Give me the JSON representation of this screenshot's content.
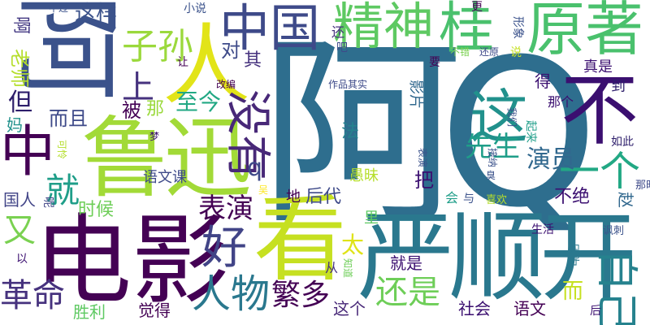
{
  "words": [
    {
      "id": "aq",
      "text": "阿Q",
      "color": "#2e6e8e"
    },
    {
      "id": "yanshunkai",
      "text": "严顺开",
      "color": "#2a788e"
    },
    {
      "id": "dianying",
      "text": "电影",
      "color": "#440154"
    },
    {
      "id": "luxun",
      "text": "鲁迅",
      "color": "#a2da37"
    },
    {
      "id": "kan",
      "text": "看",
      "color": "#c6e021"
    },
    {
      "id": "ren",
      "text": "人",
      "color": "#e2e418"
    },
    {
      "id": "a",
      "text": "阿",
      "color": "#3b528b"
    },
    {
      "id": "zhongguo",
      "text": "中国",
      "color": "#3e4a89"
    },
    {
      "id": "jingshen",
      "text": "精神",
      "color": "#5ec962"
    },
    {
      "id": "gui",
      "text": "桂",
      "color": "#4ac16d"
    },
    {
      "id": "yuanzhu",
      "text": "原著",
      "color": "#4ac16d"
    },
    {
      "id": "bu",
      "text": "不",
      "color": "#3b0f70"
    },
    {
      "id": "zhe",
      "text": "这",
      "color": "#21918c"
    },
    {
      "id": "zhong",
      "text": "中",
      "color": "#440154"
    },
    {
      "id": "meiyou",
      "text": "没有",
      "color": "#482878"
    },
    {
      "id": "hao",
      "text": "好",
      "color": "#414487"
    },
    {
      "id": "renwu",
      "text": "人物",
      "color": "#2a788e"
    },
    {
      "id": "yige",
      "text": "一个",
      "color": "#22a884"
    },
    {
      "id": "zisun",
      "text": "子孙",
      "color": "#9bd93c"
    },
    {
      "id": "shang",
      "text": "上",
      "color": "#46327e"
    },
    {
      "id": "jiu",
      "text": "就",
      "color": "#1f9e89"
    },
    {
      "id": "you",
      "text": "又",
      "color": "#7ad151"
    },
    {
      "id": "geming",
      "text": "革命",
      "color": "#46327e"
    },
    {
      "id": "fanduo",
      "text": "繁多",
      "color": "#440154"
    },
    {
      "id": "haishi",
      "text": "还是",
      "color": "#6ece58"
    },
    {
      "id": "ziji",
      "text": "自己",
      "color": "#26828e"
    },
    {
      "id": "xiansheng",
      "text": "先生",
      "color": "#1f9e89"
    },
    {
      "id": "yanyuan",
      "text": "演员",
      "color": "#31688e"
    },
    {
      "id": "biaoyan",
      "text": "表演",
      "color": "#440154"
    },
    {
      "id": "zhejin",
      "text": "至今",
      "color": "#22a884"
    },
    {
      "id": "zheyang",
      "text": "这样",
      "color": "#3b528b"
    },
    {
      "id": "a2",
      "text": "啊",
      "color": "#443983"
    },
    {
      "id": "laoshi",
      "text": "老师",
      "color": "#b5de2b"
    },
    {
      "id": "dan",
      "text": "但",
      "color": "#2d1e6b"
    },
    {
      "id": "erqie",
      "text": "而且",
      "color": "#3e4a89"
    },
    {
      "id": "ma",
      "text": "妈",
      "color": "#21918c"
    },
    {
      "id": "bei",
      "text": "被",
      "color": "#440154"
    },
    {
      "id": "na",
      "text": "那",
      "color": "#9bd93c"
    },
    {
      "id": "dui",
      "text": "对",
      "color": "#3e4a89"
    },
    {
      "id": "qi",
      "text": "其",
      "color": "#46327e"
    },
    {
      "id": "qx",
      "text": "q",
      "color": "#3e4a89"
    },
    {
      "id": "fa",
      "text": "法",
      "color": "#26828e"
    },
    {
      "id": "yuwenke",
      "text": "语文课",
      "color": "#3e4a89"
    },
    {
      "id": "shihou",
      "text": "时候",
      "color": "#6ece58"
    },
    {
      "id": "guoren",
      "text": "国人",
      "color": "#414487"
    },
    {
      "id": "shengli",
      "text": "胜利",
      "color": "#5ec962"
    },
    {
      "id": "juede",
      "text": "觉得",
      "color": "#440154"
    },
    {
      "id": "jiushi",
      "text": "就是",
      "color": "#3b0f70"
    },
    {
      "id": "zhege",
      "text": "这个",
      "color": "#482878"
    },
    {
      "id": "shehui",
      "text": "社会",
      "color": "#3b0f70"
    },
    {
      "id": "yuwen",
      "text": "语文",
      "color": "#440154"
    },
    {
      "id": "er",
      "text": "而",
      "color": "#c6e021"
    },
    {
      "id": "houdai",
      "text": "后代",
      "color": "#3e4a89"
    },
    {
      "id": "di",
      "text": "地",
      "color": "#440154"
    },
    {
      "id": "bujue",
      "text": "不绝",
      "color": "#3b0f70"
    },
    {
      "id": "yumei",
      "text": "愚昧",
      "color": "#b5de2b"
    },
    {
      "id": "ba",
      "text": "把",
      "color": "#3b0f70"
    },
    {
      "id": "tai",
      "text": "太",
      "color": "#dfe318"
    },
    {
      "id": "li",
      "text": "里",
      "color": "#5ec962"
    },
    {
      "id": "hui",
      "text": "会",
      "color": "#1f9e89"
    },
    {
      "id": "yu",
      "text": "与",
      "color": "#3b528b"
    },
    {
      "id": "xihuan",
      "text": "喜欢",
      "color": "#b5de2b"
    },
    {
      "id": "congle",
      "text": "从",
      "color": "#46327e"
    },
    {
      "id": "shenghuo",
      "text": "生活",
      "color": "#3b0f70"
    },
    {
      "id": "yinwei",
      "text": "因为",
      "color": "#2a788e"
    },
    {
      "id": "wei",
      "text": "为",
      "color": "#3b0f70"
    },
    {
      "id": "hou",
      "text": "后",
      "color": "#3b528b"
    },
    {
      "id": "fengci",
      "text": "讽刺",
      "color": "#31688e"
    },
    {
      "id": "zhao",
      "text": "赵",
      "color": "#3e4a89"
    },
    {
      "id": "naishi",
      "text": "那时",
      "color": "#2d1e6b"
    },
    {
      "id": "ruci",
      "text": "如此",
      "color": "#3b528b"
    },
    {
      "id": "biaoyan2",
      "text": "表演",
      "color": "#440154"
    },
    {
      "id": "xiaoshuo",
      "text": "小说",
      "color": "#3b528b"
    },
    {
      "id": "buguo",
      "text": "不过",
      "color": "#3b528b"
    },
    {
      "id": "geng",
      "text": "更",
      "color": "#440154"
    },
    {
      "id": "xingxiang",
      "text": "形象",
      "color": "#3b528b"
    },
    {
      "id": "huan",
      "text": "还",
      "color": "#46327e"
    },
    {
      "id": "buhuo",
      "text": "不错",
      "color": "#7ad151"
    },
    {
      "id": "huanyuan",
      "text": "还原",
      "color": "#3e4a89"
    },
    {
      "id": "shuo",
      "text": "说",
      "color": "#c6e021"
    },
    {
      "id": "yao",
      "text": "要",
      "color": "#440154"
    },
    {
      "id": "zhenshi",
      "text": "真是",
      "color": "#3b0f70"
    },
    {
      "id": "dao",
      "text": "到",
      "color": "#2d1e6b"
    },
    {
      "id": "de",
      "text": "得",
      "color": "#3b0f70"
    },
    {
      "id": "yingpian",
      "text": "影片",
      "color": "#31688e"
    },
    {
      "id": "zuopin",
      "text": "作品其实",
      "color": "#3e4a89"
    },
    {
      "id": "gaibian",
      "text": "改编",
      "color": "#440154"
    },
    {
      "id": "rang",
      "text": "让",
      "color": "#440154"
    },
    {
      "id": "woman",
      "text": "我们",
      "color": "#3b528b"
    },
    {
      "id": "qilai",
      "text": "起来",
      "color": "#1f9e89"
    },
    {
      "id": "nage",
      "text": "那个",
      "color": "#3b0f70"
    },
    {
      "id": "meng",
      "text": "梦",
      "color": "#3b0f70"
    },
    {
      "id": "keling",
      "text": "可怜",
      "color": "#b5de2b"
    },
    {
      "id": "ne",
      "text": "呢",
      "color": "#414487"
    },
    {
      "id": "yi",
      "text": "以",
      "color": "#3b0f70"
    },
    {
      "id": "wu",
      "text": "吴",
      "color": "#fde725"
    },
    {
      "id": "zhidao",
      "text": "知道",
      "color": "#6ece58"
    },
    {
      "id": "biaoxian",
      "text": "臭",
      "color": "#3b528b"
    },
    {
      "id": "jiena",
      "text": "接纳",
      "color": "#3b528b"
    },
    {
      "id": "ma2",
      "text": "吧",
      "color": "#3e4a89"
    }
  ]
}
